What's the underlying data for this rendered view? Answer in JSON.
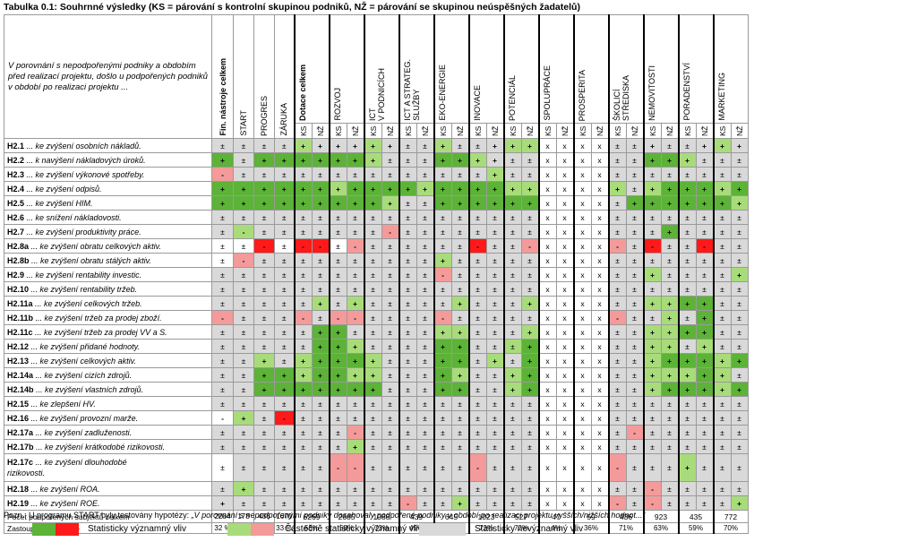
{
  "title": "Tabulka 0.1: Souhrnné výsledky (KS = párování s kontrolní skupinou podniků, NŽ = párování se skupinou neúspěšných žadatelů)",
  "description": "V porovnání s nepodpořenými podniky a obdobím před realizací projektu, došlo u podpořených podniků v období po realizaci projektu ...",
  "fin_columns": [
    "Fin. nástroje celkem",
    "START",
    "PROGRES",
    "ZÁRUKA"
  ],
  "groups": [
    "Dotace celkem",
    "ROZVOJ",
    "ICT\nV PODNICÍCH",
    "ICT A STRATEG.\nSLUŽBY",
    "EKO-ENERGIE",
    "INOVACE",
    "POTENCIÁL",
    "SPOLUPRÁCE",
    "PROSPERITA",
    "ŠKOLICÍ\nSTŘEDISKA",
    "NEMOVITOSTI",
    "PORADENSTVÍ",
    "MARKETING"
  ],
  "sub_labels": [
    "KS",
    "NŽ"
  ],
  "rows": [
    {
      "code": "H2.1",
      "text": " ... ke zvýšení osobních nákladů.",
      "cells": [
        "±",
        "±",
        "±",
        "±",
        "+",
        "+",
        "+",
        "+",
        "+",
        "+",
        "±",
        "±",
        "+",
        "±",
        "±",
        "+",
        "+",
        "+",
        "x",
        "x",
        "x",
        "x",
        "±",
        "±",
        "+",
        "±",
        "±",
        "+",
        "+",
        "+"
      ],
      "colors": "nnnnpnnnpnnnpnnnppwwwwnnnnnnpn"
    },
    {
      "code": "H2.2",
      "text": " ... k navýšení nákladových úroků.",
      "cells": [
        "+",
        "±",
        "+",
        "+",
        "+",
        "+",
        "+",
        "+",
        "+",
        "±",
        "±",
        "±",
        "+",
        "+",
        "+",
        "+",
        "±",
        "±",
        "x",
        "x",
        "x",
        "x",
        "±",
        "±",
        "+",
        "+",
        "+",
        "±",
        "±",
        "±"
      ],
      "colors": "cnccccccpnnnccpnnnwwwwnnccpnnn"
    },
    {
      "code": "H2.3",
      "text": " ... ke zvýšení výkonové spotřeby.",
      "cells": [
        "-",
        "±",
        "±",
        "±",
        "±",
        "±",
        "±",
        "±",
        "±",
        "±",
        "±",
        "±",
        "±",
        "±",
        "±",
        "+",
        "±",
        "±",
        "x",
        "x",
        "x",
        "x",
        "±",
        "±",
        "±",
        "±",
        "±",
        "±",
        "±",
        "±"
      ],
      "colors": "rnnnnnnnnnnnnnnpnnwwwwnnnnnnnn"
    },
    {
      "code": "H2.4",
      "text": " ... ke zvýšení odpisů.",
      "cells": [
        "+",
        "+",
        "+",
        "+",
        "+",
        "+",
        "+",
        "+",
        "+",
        "+",
        "+",
        "+",
        "+",
        "+",
        "+",
        "+",
        "+",
        "+",
        "x",
        "x",
        "x",
        "x",
        "+",
        "±",
        "+",
        "+",
        "+",
        "+",
        "+",
        "+"
      ],
      "colors": "ccccccpccccpccccppwwwwpnpcccpc"
    },
    {
      "code": "H2.5",
      "text": " ... ke zvýšení HIM.",
      "cells": [
        "+",
        "+",
        "+",
        "+",
        "+",
        "+",
        "+",
        "+",
        "+",
        "+",
        "±",
        "±",
        "+",
        "+",
        "+",
        "+",
        "+",
        "+",
        "x",
        "x",
        "x",
        "x",
        "±",
        "+",
        "+",
        "+",
        "+",
        "+",
        "+",
        "+"
      ],
      "colors": "cccccccccpnnccccccwwwwnccccccp"
    },
    {
      "code": "H2.6",
      "text": " ... ke snížení nákladovosti.",
      "cells": [
        "±",
        "±",
        "±",
        "±",
        "±",
        "±",
        "±",
        "±",
        "±",
        "±",
        "±",
        "±",
        "±",
        "±",
        "±",
        "±",
        "±",
        "±",
        "x",
        "x",
        "x",
        "x",
        "±",
        "±",
        "±",
        "±",
        "±",
        "±",
        "±",
        "±"
      ],
      "colors": "nnnnnnnnnnnnnnnnnnwwwwnnnnnnnn"
    },
    {
      "code": "H2.7",
      "text": " ... ke zvýšení produktivity práce.",
      "cells": [
        "±",
        "-",
        "±",
        "±",
        "±",
        "±",
        "±",
        "±",
        "±",
        "-",
        "±",
        "±",
        "±",
        "±",
        "±",
        "±",
        "±",
        "±",
        "x",
        "x",
        "x",
        "x",
        "±",
        "±",
        "±",
        "+",
        "±",
        "±",
        "±",
        "±"
      ],
      "colors": "npnnnnnnnrnnnnnnnnwwwwnnncnnnn"
    },
    {
      "code": "H2.8a",
      "text": " ... ke zvýšení obratu celkových aktiv.",
      "cells": [
        "±",
        "±",
        "-",
        "±",
        "-",
        "-",
        "±",
        "-",
        "±",
        "±",
        "±",
        "±",
        "±",
        "±",
        "-",
        "±",
        "±",
        "-",
        "x",
        "x",
        "x",
        "x",
        "-",
        "±",
        "-",
        "±",
        "±",
        "-",
        "±",
        "±"
      ],
      "colors": "wwswsswrnnnnnnsnnrwwwwrnsnnsnn"
    },
    {
      "code": "H2.8b",
      "text": " ... ke zvýšení obratu stálých aktiv.",
      "cells": [
        "±",
        "-",
        "±",
        "±",
        "±",
        "±",
        "±",
        "±",
        "±",
        "±",
        "±",
        "±",
        "+",
        "±",
        "±",
        "±",
        "±",
        "±",
        "x",
        "x",
        "x",
        "x",
        "±",
        "±",
        "±",
        "±",
        "±",
        "±",
        "±",
        "±"
      ],
      "colors": "wrnnnnnnnnnnpnnnnnwwwwnnnnnnnn"
    },
    {
      "code": "H2.9",
      "text": " ... ke zvýšení rentability investic.",
      "cells": [
        "±",
        "±",
        "±",
        "±",
        "±",
        "±",
        "±",
        "±",
        "±",
        "±",
        "±",
        "±",
        "-",
        "±",
        "±",
        "±",
        "±",
        "±",
        "x",
        "x",
        "x",
        "x",
        "±",
        "±",
        "+",
        "±",
        "±",
        "±",
        "±",
        "+"
      ],
      "colors": "nnnnnnnnnnnnrnnnnnwwwwnnpnnnnp"
    },
    {
      "code": "H2.10",
      "text": " ... ke zvýšení rentability tržeb.",
      "cells": [
        "±",
        "±",
        "±",
        "±",
        "±",
        "±",
        "±",
        "±",
        "±",
        "±",
        "±",
        "±",
        "±",
        "±",
        "±",
        "±",
        "±",
        "±",
        "x",
        "x",
        "x",
        "x",
        "±",
        "±",
        "±",
        "±",
        "±",
        "±",
        "±",
        "±"
      ],
      "colors": "nnnnnnnnnnnnnnnnnnwwwwnnnnnnnn"
    },
    {
      "code": "H2.11a",
      "text": " ... ke zvýšení celkových tržeb.",
      "cells": [
        "±",
        "±",
        "±",
        "±",
        "±",
        "+",
        "±",
        "+",
        "±",
        "±",
        "±",
        "±",
        "±",
        "+",
        "±",
        "±",
        "±",
        "+",
        "x",
        "x",
        "x",
        "x",
        "±",
        "±",
        "+",
        "+",
        "+",
        "+",
        "±",
        "±"
      ],
      "colors": "nnnnnpnpnnnnnpnnnpwwwwnnppccnn"
    },
    {
      "code": "H2.11b",
      "text": " ... ke zvýšení tržeb za prodej zboží.",
      "cells": [
        "-",
        "±",
        "±",
        "±",
        "-",
        "±",
        "-",
        "-",
        "±",
        "±",
        "±",
        "±",
        "-",
        "±",
        "±",
        "±",
        "±",
        "±",
        "x",
        "x",
        "x",
        "x",
        "-",
        "±",
        "±",
        "+",
        "±",
        "+",
        "±",
        "±"
      ],
      "colors": "rnnnrnrrnnnnrnnnnnwwwwrnnpncnn"
    },
    {
      "code": "H2.11c",
      "text": " ... ke zvýšení tržeb za prodej VV a S.",
      "cells": [
        "±",
        "±",
        "±",
        "±",
        "±",
        "+",
        "+",
        "±",
        "±",
        "±",
        "±",
        "±",
        "+",
        "+",
        "±",
        "±",
        "±",
        "+",
        "x",
        "x",
        "x",
        "x",
        "±",
        "±",
        "+",
        "+",
        "+",
        "+",
        "±",
        "±"
      ],
      "colors": "nnnnnccnnnnnppnnnpwwwwnnppccnn"
    },
    {
      "code": "H2.12",
      "text": " ... ke zvýšení přidané hodnoty.",
      "cells": [
        "±",
        "±",
        "±",
        "±",
        "±",
        "+",
        "+",
        "+",
        "±",
        "±",
        "±",
        "±",
        "+",
        "+",
        "±",
        "±",
        "±",
        "+",
        "x",
        "x",
        "x",
        "x",
        "±",
        "±",
        "+",
        "+",
        "±",
        "+",
        "±",
        "±"
      ],
      "colors": "nnnnnccpnnnnccnnpcwwwwnnppnpnn"
    },
    {
      "code": "H2.13",
      "text": " ... ke zvýšení celkových aktiv.",
      "cells": [
        "±",
        "±",
        "+",
        "±",
        "+",
        "+",
        "+",
        "+",
        "+",
        "±",
        "±",
        "±",
        "+",
        "+",
        "±",
        "+",
        "±",
        "+",
        "x",
        "x",
        "x",
        "x",
        "±",
        "±",
        "+",
        "+",
        "+",
        "+",
        "+",
        "+"
      ],
      "colors": "nnpnpcccpnnnccnpncwwwwnnpcccpc"
    },
    {
      "code": "H2.14a",
      "text": " ... ke zvýšení cizích zdrojů.",
      "cells": [
        "±",
        "±",
        "+",
        "+",
        "+",
        "+",
        "+",
        "+",
        "+",
        "±",
        "±",
        "±",
        "+",
        "+",
        "±",
        "±",
        "+",
        "+",
        "x",
        "x",
        "x",
        "x",
        "±",
        "±",
        "+",
        "+",
        "+",
        "+",
        "+",
        "±"
      ],
      "colors": "nnccpccppnnncpnnpcwwwwnnpppcpn"
    },
    {
      "code": "H2.14b",
      "text": " ... ke zvýšení vlastních zdrojů.",
      "cells": [
        "±",
        "±",
        "+",
        "+",
        "+",
        "+",
        "+",
        "+",
        "+",
        "±",
        "±",
        "±",
        "+",
        "+",
        "±",
        "±",
        "+",
        "+",
        "x",
        "x",
        "x",
        "x",
        "±",
        "±",
        "+",
        "+",
        "+",
        "+",
        "+",
        "+"
      ],
      "colors": "nncccccccnnnccnnpcwwwwnnpcccpc"
    },
    {
      "code": "H2.15",
      "text": " ... ke zlepšení HV.",
      "cells": [
        "±",
        "±",
        "±",
        "±",
        "±",
        "±",
        "±",
        "±",
        "±",
        "±",
        "±",
        "±",
        "±",
        "±",
        "±",
        "±",
        "±",
        "±",
        "x",
        "x",
        "x",
        "x",
        "±",
        "±",
        "±",
        "±",
        "±",
        "±",
        "±",
        "±"
      ],
      "colors": "nnnnnnnnnnnnnnnnnnwwwwnnnnnnnn"
    },
    {
      "code": "H2.16",
      "text": " ... ke zvýšení provozní marže.",
      "cells": [
        "-",
        "+",
        "±",
        "-",
        "±",
        "±",
        "±",
        "±",
        "±",
        "±",
        "±",
        "±",
        "±",
        "±",
        "±",
        "±",
        "±",
        "±",
        "x",
        "x",
        "x",
        "x",
        "±",
        "±",
        "±",
        "±",
        "±",
        "±",
        "±",
        "±"
      ],
      "colors": "wpnsnnnnnnnnnnnnnnwwwwnnnnnnnn"
    },
    {
      "code": "H2.17a",
      "text": " ... ke zvýšení zadluženosti.",
      "cells": [
        "±",
        "±",
        "±",
        "±",
        "±",
        "±",
        "±",
        "-",
        "±",
        "±",
        "±",
        "±",
        "±",
        "±",
        "±",
        "±",
        "±",
        "±",
        "x",
        "x",
        "x",
        "x",
        "±",
        "-",
        "±",
        "±",
        "±",
        "±",
        "±",
        "±"
      ],
      "colors": "nnnnnnnrnnnnnnnnnnwwwwnrnnnnnn"
    },
    {
      "code": "H2.17b",
      "text": " ... ke zvýšení krátkodobé rizikovosti.",
      "cells": [
        "±",
        "±",
        "±",
        "±",
        "±",
        "±",
        "±",
        "+",
        "±",
        "±",
        "±",
        "±",
        "±",
        "±",
        "±",
        "±",
        "±",
        "±",
        "x",
        "x",
        "x",
        "x",
        "±",
        "±",
        "±",
        "±",
        "±",
        "±",
        "±",
        "±"
      ],
      "colors": "nnnnnnnpnnnnnnnnnnwwwwnnnnnnnn"
    },
    {
      "code": "H2.17c",
      "text": " ... ke zvýšení dlouhodobé\nrizikovosti.",
      "cells": [
        "±",
        "±",
        "±",
        "±",
        "±",
        "±",
        "-",
        "-",
        "±",
        "±",
        "±",
        "±",
        "±",
        "±",
        "-",
        "±",
        "±",
        "±",
        "x",
        "x",
        "x",
        "x",
        "-",
        "±",
        "±",
        "±",
        "+",
        "±",
        "±",
        "±"
      ],
      "colors": "wnnnnnrrnnnnnnrnnnwwwwrnnnpnnn",
      "tall": true
    },
    {
      "code": "H2.18",
      "text": " ... ke zvýšení ROA.",
      "cells": [
        "±",
        "+",
        "±",
        "±",
        "±",
        "±",
        "±",
        "±",
        "±",
        "±",
        "±",
        "±",
        "±",
        "±",
        "±",
        "±",
        "±",
        "±",
        "x",
        "x",
        "x",
        "x",
        "±",
        "±",
        "-",
        "±",
        "±",
        "±",
        "±",
        "±"
      ],
      "colors": "npnnnnnnnnnnnnnnnnwwwwnnrnnnnn"
    },
    {
      "code": "H2.19",
      "text": " ... ke zvýšení ROE.",
      "cells": [
        "+",
        "±",
        "±",
        "±",
        "±",
        "±",
        "±",
        "±",
        "±",
        "±",
        "-",
        "±",
        "±",
        "+",
        "±",
        "±",
        "±",
        "±",
        "x",
        "x",
        "x",
        "x",
        "-",
        "±",
        "-",
        "±",
        "±",
        "±",
        "±",
        "+"
      ],
      "colors": "nnnnnnnnnnrnnpnnnnwwwwrnrnnnnp"
    }
  ],
  "footer": {
    "label1": "Počet podpořených subjektů celkem",
    "label2": "Zastoupení v analýze",
    "fin_counts": [
      "2284",
      "178",
      "436",
      "1670"
    ],
    "fin_pcts": [
      "32 %",
      "25 %",
      "44 %",
      "33 %"
    ],
    "group_counts": [
      "6269",
      "2685",
      "1088",
      "439",
      "645",
      "1023",
      "527",
      "47",
      "59",
      "436",
      "923",
      "435",
      "772"
    ],
    "group_pcts": [
      "58%",
      "59%",
      "73%",
      "49%",
      "60%",
      "72%",
      "72%",
      "4%",
      "36%",
      "71%",
      "63%",
      "59%",
      "70%"
    ]
  },
  "note_prefix": "Pozn.: U programu START byly testovány hypotézy: ",
  "note_italic": "„V porovnání s nepodpořenými podniky dosahovaly podpořené podniky v období po realizaci projektu vyšších/nižších hodnot...“",
  "legend": {
    "significant": "Statisticky významný vliv",
    "partial": "Částečně statisticky významný vliv",
    "insignificant": "Statisticky nevýznamný vliv"
  },
  "colors": {
    "significant_positive": "#5cb337",
    "partial_positive": "#a8dc7a",
    "insignificant": "#d9d9d9",
    "partial_negative": "#f49a9a",
    "significant_negative": "#ff1a1a"
  }
}
